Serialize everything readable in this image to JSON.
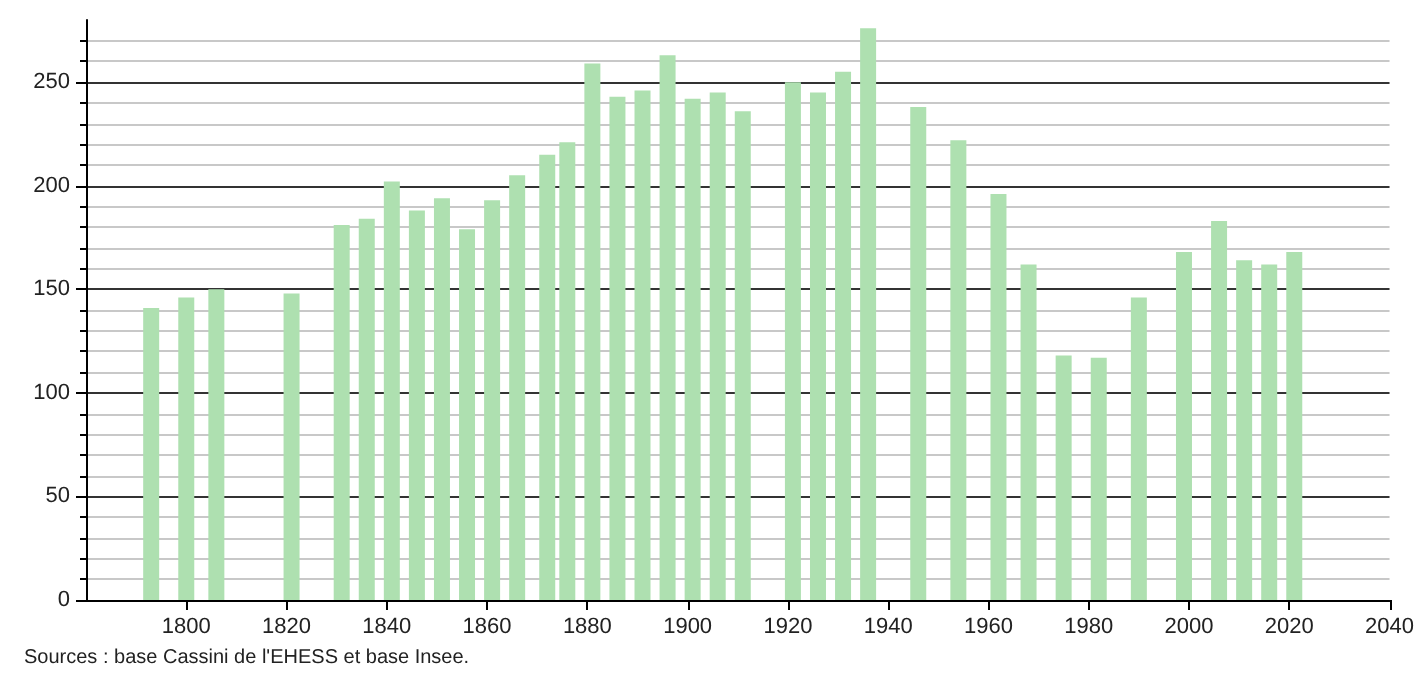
{
  "chart_data": {
    "type": "bar",
    "x": [
      1793,
      1800,
      1806,
      1821,
      1831,
      1836,
      1841,
      1846,
      1851,
      1856,
      1861,
      1866,
      1872,
      1876,
      1881,
      1886,
      1891,
      1896,
      1901,
      1906,
      1911,
      1921,
      1926,
      1931,
      1936,
      1946,
      1954,
      1962,
      1968,
      1975,
      1982,
      1990,
      1999,
      2006,
      2011,
      2016,
      2021
    ],
    "values": [
      141,
      146,
      150,
      148,
      181,
      184,
      202,
      188,
      194,
      179,
      193,
      205,
      215,
      221,
      259,
      243,
      246,
      263,
      242,
      245,
      236,
      250,
      245,
      255,
      276,
      238,
      222,
      196,
      162,
      118,
      117,
      146,
      168,
      183,
      164,
      162,
      168
    ],
    "color": "#aee0b0",
    "xlim": [
      1780,
      2040
    ],
    "xticks": [
      1800,
      1820,
      1840,
      1860,
      1880,
      1900,
      1920,
      1940,
      1960,
      1980,
      2000,
      2020,
      2040
    ],
    "ylim": [
      0,
      280
    ],
    "yticks": [
      0,
      50,
      100,
      150,
      200,
      250
    ],
    "grid": "y",
    "annotations": [
      "Sources : base Cassini de l'EHESS et base Insee."
    ]
  }
}
